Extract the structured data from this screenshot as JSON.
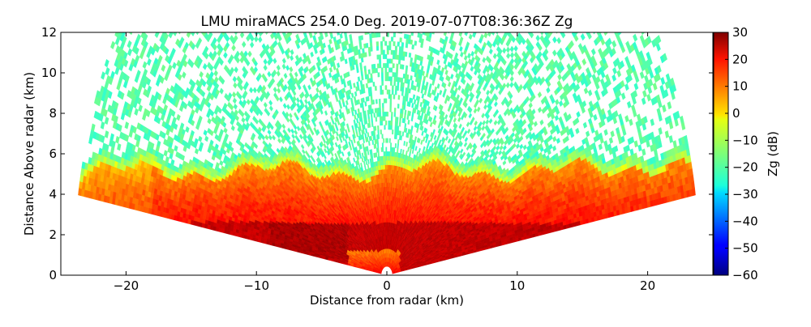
{
  "chart_data": {
    "type": "heatmap",
    "title": "LMU miraMACS 254.0 Deg. 2019-07-07T08:36:36Z  Zg",
    "xlabel": "Distance from radar (km)",
    "ylabel": "Distance Above radar  (km)",
    "xlim": [
      -25,
      25
    ],
    "ylim": [
      0,
      12
    ],
    "x_ticks": [
      {
        "value": -20,
        "label": "−20"
      },
      {
        "value": -10,
        "label": "−10"
      },
      {
        "value": 0,
        "label": "0"
      },
      {
        "value": 10,
        "label": "10"
      },
      {
        "value": 20,
        "label": "20"
      }
    ],
    "y_ticks": [
      {
        "value": 0,
        "label": "0"
      },
      {
        "value": 2,
        "label": "2"
      },
      {
        "value": 4,
        "label": "4"
      },
      {
        "value": 6,
        "label": "6"
      },
      {
        "value": 8,
        "label": "8"
      },
      {
        "value": 10,
        "label": "10"
      },
      {
        "value": 12,
        "label": "12"
      }
    ],
    "colorbar": {
      "label": "Zg (dB)",
      "colormap": "jet",
      "range": [
        -60,
        30
      ],
      "ticks": [
        {
          "value": 30,
          "label": "30"
        },
        {
          "value": 20,
          "label": "20"
        },
        {
          "value": 10,
          "label": "10"
        },
        {
          "value": 0,
          "label": "0"
        },
        {
          "value": -10,
          "label": "−10"
        },
        {
          "value": -20,
          "label": "−20"
        },
        {
          "value": -30,
          "label": "−30"
        },
        {
          "value": -40,
          "label": "−40"
        },
        {
          "value": -50,
          "label": "−50"
        },
        {
          "value": -60,
          "label": "−60"
        }
      ]
    },
    "scan": {
      "max_range_km": 24,
      "min_elevation_deg": 9.5,
      "max_elevation_deg": 170.5
    },
    "layers": [
      {
        "name": "noise",
        "z_range": [
          -30,
          -18
        ],
        "height_range_km": [
          6.5,
          12
        ]
      },
      {
        "name": "cloud_top_edge",
        "z_range": [
          -25,
          -10
        ],
        "height_range_km": [
          5.5,
          6.8
        ]
      },
      {
        "name": "anvil_layer",
        "z_range": [
          5,
          20
        ],
        "height_range_km": [
          2.7,
          5.8
        ]
      },
      {
        "name": "rain_layer",
        "z_range": [
          18,
          27
        ],
        "height_range_km": [
          0.2,
          2.7
        ]
      }
    ],
    "grid": false
  }
}
